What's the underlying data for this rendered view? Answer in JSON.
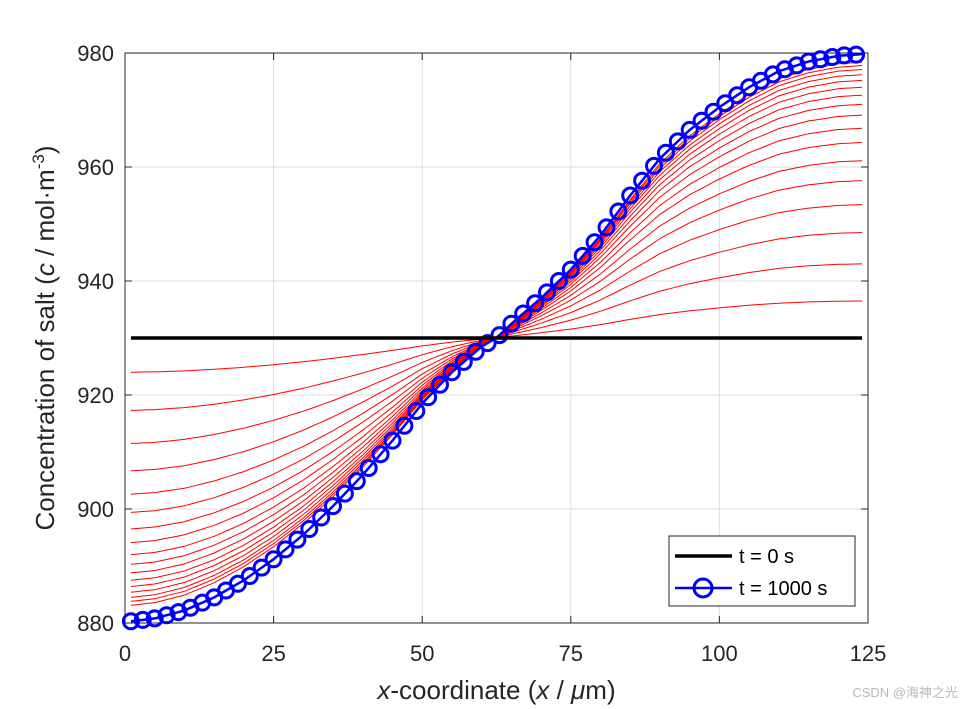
{
  "chart_data": {
    "type": "line",
    "xlabel_parts": [
      "x",
      "-coordinate (",
      "x",
      " / ",
      "μ",
      "m)"
    ],
    "ylabel_parts": [
      "Concentration of salt (",
      "c",
      " / mol·m",
      "-3",
      ")"
    ],
    "xlim": [
      0,
      125
    ],
    "ylim": [
      880,
      980
    ],
    "xticks": [
      0,
      25,
      50,
      75,
      100,
      125
    ],
    "yticks": [
      880,
      900,
      920,
      940,
      960,
      980
    ],
    "grid": true,
    "legend_position": "bottom-right",
    "legend": [
      {
        "label": "t = 0 s",
        "color": "#000000",
        "marker": "none"
      },
      {
        "label": "t = 1000 s",
        "color": "#0000ff",
        "marker": "circle"
      }
    ],
    "x_range": [
      1,
      124
    ],
    "initial_value": 930,
    "final_profile": {
      "x": [
        1,
        5,
        10,
        15,
        20,
        25,
        30,
        35,
        40,
        45,
        50,
        55,
        60,
        62.5,
        65,
        70,
        75,
        80,
        85,
        90,
        95,
        100,
        105,
        110,
        115,
        120,
        124
      ],
      "y": [
        880.3,
        880.8,
        882.2,
        884.5,
        887.5,
        891.2,
        895.5,
        900.5,
        906.0,
        912.0,
        918.5,
        924.0,
        928.5,
        930.0,
        932.5,
        937.0,
        942.0,
        948.0,
        955.0,
        961.5,
        966.5,
        970.5,
        974.0,
        976.8,
        978.5,
        979.5,
        979.8
      ]
    },
    "intermediate_profiles": {
      "color": "#ff0000",
      "left_plateau": [
        924,
        917.3,
        911.5,
        906.7,
        902.6,
        899.4,
        896.5,
        894.1,
        892.0,
        890.3,
        888.8,
        887.5,
        886.4,
        885.4,
        884.5,
        883.8,
        883.1
      ],
      "right_plateau": [
        936.5,
        943,
        948.5,
        953.4,
        957.6,
        961.1,
        964.3,
        966.8,
        969.1,
        971.0,
        972.6,
        974.0,
        975.2,
        976.2,
        977.1,
        977.8,
        978.4
      ]
    },
    "series": [
      {
        "name": "t = 0 s",
        "color": "#000000"
      },
      {
        "name": "t = 1000 s",
        "color": "#0000ff"
      }
    ]
  },
  "watermark": "CSDN @海神之光"
}
